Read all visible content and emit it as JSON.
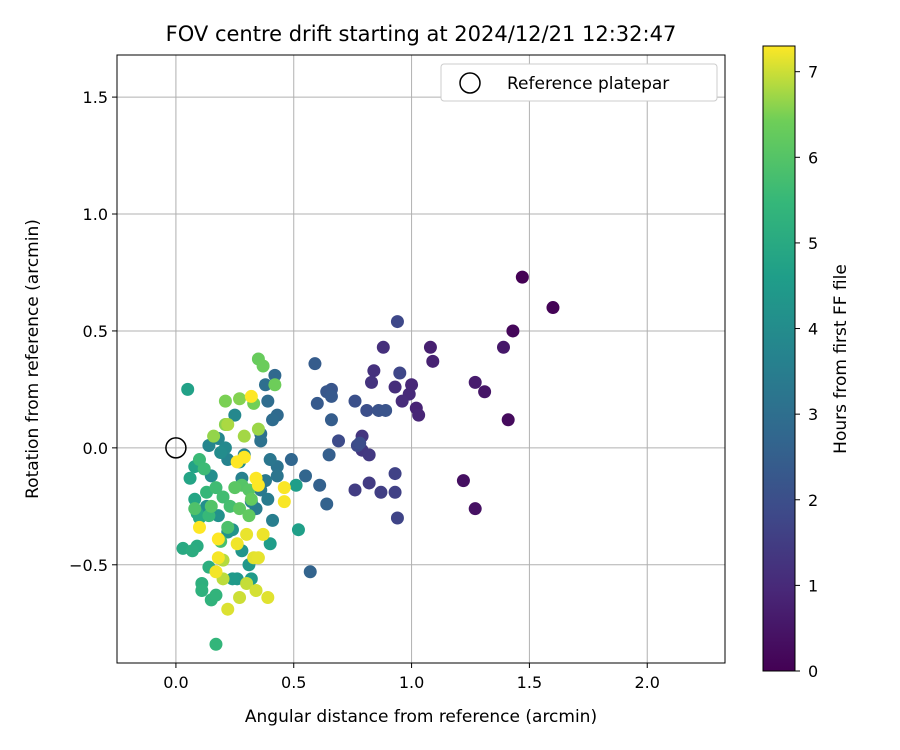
{
  "chart_data": {
    "type": "scatter",
    "title": "FOV centre drift starting at 2024/12/21 12:32:47",
    "xlabel": "Angular distance from reference (arcmin)",
    "ylabel": "Rotation from reference (arcmin)",
    "xlim": [
      -0.25,
      2.33
    ],
    "ylim": [
      -0.92,
      1.68
    ],
    "xticks": [
      "0.0",
      "0.5",
      "1.0",
      "1.5",
      "2.0"
    ],
    "yticks": [
      "−0.5",
      "0.0",
      "0.5",
      "1.0",
      "1.5"
    ],
    "xtick_values": [
      0,
      0.5,
      1.0,
      1.5,
      2.0
    ],
    "ytick_values": [
      -0.5,
      0,
      0.5,
      1.0,
      1.5
    ],
    "grid": true,
    "legend": {
      "position": "top-right",
      "entries": [
        "Reference platepar"
      ]
    },
    "reference_point": {
      "x": 0.0,
      "y": 0.0
    },
    "colorbar": {
      "label": "Hours from first FF file",
      "ticks": [
        "0",
        "1",
        "2",
        "3",
        "4",
        "5",
        "6",
        "7"
      ],
      "tick_values": [
        0,
        1,
        2,
        3,
        4,
        5,
        6,
        7
      ],
      "range": [
        0,
        7.3
      ],
      "colormap": "viridis"
    },
    "series": [
      {
        "points": [
          [
            1.47,
            0.73,
            0.0
          ],
          [
            1.6,
            0.6,
            0.05
          ],
          [
            1.43,
            0.5,
            0.15
          ],
          [
            1.41,
            0.12,
            0.25
          ],
          [
            1.22,
            -0.14,
            0.35
          ],
          [
            1.27,
            -0.26,
            0.4
          ],
          [
            1.31,
            0.24,
            0.5
          ],
          [
            1.39,
            0.43,
            0.55
          ],
          [
            1.27,
            0.28,
            0.65
          ],
          [
            1.08,
            0.43,
            0.75
          ],
          [
            1.09,
            0.37,
            0.8
          ],
          [
            1.02,
            0.17,
            0.85
          ],
          [
            1.03,
            0.14,
            0.9
          ],
          [
            1.0,
            0.27,
            0.95
          ],
          [
            0.99,
            0.23,
            1.0
          ],
          [
            0.96,
            0.2,
            1.05
          ],
          [
            0.93,
            0.26,
            1.1
          ],
          [
            0.88,
            0.43,
            1.15
          ],
          [
            0.84,
            0.33,
            1.2
          ],
          [
            0.83,
            0.28,
            1.25
          ],
          [
            0.79,
            0.05,
            1.3
          ],
          [
            0.79,
            -0.01,
            1.35
          ],
          [
            0.82,
            -0.03,
            1.4
          ],
          [
            0.82,
            -0.15,
            1.45
          ],
          [
            0.76,
            -0.18,
            1.5
          ],
          [
            0.87,
            -0.19,
            1.55
          ],
          [
            0.93,
            -0.19,
            1.6
          ],
          [
            0.93,
            -0.11,
            1.65
          ],
          [
            0.94,
            -0.3,
            1.7
          ],
          [
            0.95,
            0.32,
            1.75
          ],
          [
            0.94,
            0.54,
            1.8
          ],
          [
            0.77,
            0.01,
            1.85
          ],
          [
            0.69,
            0.03,
            1.9
          ],
          [
            0.78,
            0.02,
            1.95
          ],
          [
            0.81,
            0.16,
            2.0
          ],
          [
            0.76,
            0.2,
            2.05
          ],
          [
            0.86,
            0.16,
            2.1
          ],
          [
            0.89,
            0.16,
            2.15
          ],
          [
            0.66,
            0.25,
            2.2
          ],
          [
            0.64,
            0.24,
            2.25
          ],
          [
            0.66,
            0.22,
            2.3
          ],
          [
            0.6,
            0.19,
            2.35
          ],
          [
            0.59,
            0.36,
            2.4
          ],
          [
            0.66,
            0.12,
            2.45
          ],
          [
            0.65,
            -0.03,
            2.5
          ],
          [
            0.61,
            -0.16,
            2.55
          ],
          [
            0.64,
            -0.24,
            2.6
          ],
          [
            0.57,
            -0.53,
            2.65
          ],
          [
            0.55,
            -0.12,
            2.7
          ],
          [
            0.49,
            -0.05,
            2.75
          ],
          [
            0.42,
            0.31,
            2.8
          ],
          [
            0.43,
            0.14,
            2.85
          ],
          [
            0.41,
            0.12,
            2.9
          ],
          [
            0.39,
            0.2,
            2.95
          ],
          [
            0.38,
            0.27,
            3.0
          ],
          [
            0.36,
            0.06,
            3.05
          ],
          [
            0.36,
            0.03,
            3.1
          ],
          [
            0.43,
            -0.08,
            3.15
          ],
          [
            0.43,
            -0.12,
            3.2
          ],
          [
            0.4,
            -0.05,
            3.25
          ],
          [
            0.38,
            -0.14,
            3.3
          ],
          [
            0.36,
            -0.18,
            3.35
          ],
          [
            0.39,
            -0.22,
            3.4
          ],
          [
            0.34,
            -0.26,
            3.45
          ],
          [
            0.41,
            -0.31,
            3.5
          ],
          [
            0.32,
            -0.23,
            3.55
          ],
          [
            0.28,
            -0.13,
            3.6
          ],
          [
            0.29,
            -0.03,
            3.65
          ],
          [
            0.22,
            -0.05,
            3.7
          ],
          [
            0.14,
            0.01,
            3.75
          ],
          [
            0.18,
            0.04,
            3.8
          ],
          [
            0.25,
            0.14,
            3.85
          ],
          [
            0.21,
            0.0,
            3.9
          ],
          [
            0.27,
            -0.06,
            3.95
          ],
          [
            0.19,
            -0.02,
            4.0
          ],
          [
            0.15,
            -0.12,
            4.05
          ],
          [
            0.13,
            -0.25,
            4.1
          ],
          [
            0.18,
            -0.29,
            4.15
          ],
          [
            0.22,
            -0.36,
            4.2
          ],
          [
            0.24,
            -0.35,
            4.25
          ],
          [
            0.28,
            -0.44,
            4.3
          ],
          [
            0.31,
            -0.5,
            4.35
          ],
          [
            0.26,
            -0.56,
            4.4
          ],
          [
            0.24,
            -0.56,
            4.45
          ],
          [
            0.32,
            -0.56,
            4.5
          ],
          [
            0.4,
            -0.41,
            4.55
          ],
          [
            0.51,
            -0.16,
            4.6
          ],
          [
            0.52,
            -0.35,
            4.65
          ],
          [
            0.05,
            0.25,
            4.7
          ],
          [
            0.08,
            -0.08,
            4.75
          ],
          [
            0.06,
            -0.13,
            4.8
          ],
          [
            0.08,
            -0.22,
            4.85
          ],
          [
            0.09,
            -0.28,
            4.9
          ],
          [
            0.1,
            -0.3,
            4.95
          ],
          [
            0.03,
            -0.43,
            5.0
          ],
          [
            0.09,
            -0.42,
            5.05
          ],
          [
            0.07,
            -0.44,
            5.1
          ],
          [
            0.14,
            -0.51,
            5.15
          ],
          [
            0.11,
            -0.58,
            5.2
          ],
          [
            0.11,
            -0.61,
            5.25
          ],
          [
            0.15,
            -0.65,
            5.3
          ],
          [
            0.17,
            -0.63,
            5.35
          ],
          [
            0.17,
            -0.84,
            5.4
          ],
          [
            0.13,
            -0.19,
            5.45
          ],
          [
            0.14,
            -0.29,
            5.5
          ],
          [
            0.1,
            -0.05,
            5.55
          ],
          [
            0.12,
            -0.09,
            5.6
          ],
          [
            0.17,
            -0.17,
            5.65
          ],
          [
            0.2,
            -0.21,
            5.7
          ],
          [
            0.23,
            -0.25,
            5.75
          ],
          [
            0.19,
            -0.4,
            5.8
          ],
          [
            0.22,
            -0.34,
            5.85
          ],
          [
            0.08,
            -0.26,
            5.9
          ],
          [
            0.15,
            -0.25,
            5.95
          ],
          [
            0.28,
            -0.16,
            6.0
          ],
          [
            0.31,
            -0.18,
            6.05
          ],
          [
            0.25,
            -0.17,
            6.1
          ],
          [
            0.27,
            -0.26,
            6.15
          ],
          [
            0.31,
            -0.29,
            6.2
          ],
          [
            0.32,
            -0.22,
            6.25
          ],
          [
            0.35,
            0.38,
            6.3
          ],
          [
            0.37,
            0.35,
            6.35
          ],
          [
            0.42,
            0.27,
            6.4
          ],
          [
            0.33,
            0.19,
            6.45
          ],
          [
            0.21,
            0.2,
            6.5
          ],
          [
            0.27,
            0.21,
            6.55
          ],
          [
            0.21,
            0.1,
            6.6
          ],
          [
            0.16,
            0.05,
            6.65
          ],
          [
            0.35,
            0.08,
            6.7
          ],
          [
            0.29,
            0.05,
            6.75
          ],
          [
            0.22,
            0.1,
            6.8
          ],
          [
            0.2,
            -0.48,
            6.85
          ],
          [
            0.2,
            -0.56,
            6.9
          ],
          [
            0.3,
            -0.58,
            6.95
          ],
          [
            0.27,
            -0.64,
            7.0
          ],
          [
            0.34,
            -0.61,
            7.05
          ],
          [
            0.22,
            -0.69,
            7.1
          ],
          [
            0.39,
            -0.64,
            7.12
          ],
          [
            0.33,
            -0.47,
            7.14
          ],
          [
            0.35,
            -0.47,
            7.16
          ],
          [
            0.3,
            -0.37,
            7.18
          ],
          [
            0.37,
            -0.37,
            7.2
          ],
          [
            0.26,
            -0.41,
            7.22
          ],
          [
            0.17,
            -0.53,
            7.24
          ],
          [
            0.18,
            -0.47,
            7.26
          ],
          [
            0.46,
            -0.23,
            7.27
          ],
          [
            0.46,
            -0.17,
            7.28
          ],
          [
            0.35,
            -0.16,
            7.29
          ],
          [
            0.32,
            0.22,
            7.3
          ],
          [
            0.1,
            -0.34,
            7.3
          ],
          [
            0.18,
            -0.39,
            7.3
          ],
          [
            0.26,
            -0.06,
            7.3
          ],
          [
            0.34,
            -0.13,
            7.3
          ],
          [
            0.29,
            -0.04,
            7.3
          ]
        ]
      }
    ]
  }
}
